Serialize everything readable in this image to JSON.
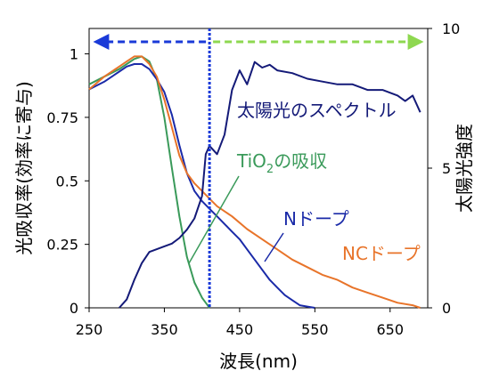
{
  "chart_data": {
    "type": "line",
    "xlabel": "波長(nm)",
    "ylabel_left": "光吸収率(効率に寄与)",
    "ylabel_right": "太陽光強度",
    "xlim": [
      250,
      700
    ],
    "ylim_left": [
      0,
      1.1
    ],
    "ylim_right": [
      0,
      10
    ],
    "x_ticks": [
      "250",
      "350",
      "450",
      "550",
      "650"
    ],
    "y_ticks_left": [
      "0",
      "0.25",
      "0.5",
      "0.75",
      "1"
    ],
    "y_ticks_right": [
      "0",
      "5",
      "10"
    ],
    "grid": false,
    "colors": {
      "tio2": "#3a9a5a",
      "n_dope": "#1a2aa8",
      "nc_dope": "#e8742a",
      "solar": "#141a78",
      "vline": "#1a3ad8",
      "arrow_left": "#1a3ad8",
      "arrow_right": "#8ed850"
    },
    "series": [
      {
        "name": "TiO2の吸収",
        "axis": "left",
        "x": [
          250,
          270,
          290,
          300,
          310,
          320,
          330,
          340,
          350,
          360,
          370,
          380,
          390,
          400,
          405,
          410
        ],
        "y": [
          0.88,
          0.91,
          0.94,
          0.96,
          0.98,
          0.99,
          0.97,
          0.9,
          0.75,
          0.55,
          0.36,
          0.2,
          0.1,
          0.04,
          0.02,
          0.0
        ]
      },
      {
        "name": "Nドープ",
        "axis": "left",
        "x": [
          250,
          270,
          290,
          300,
          310,
          320,
          330,
          340,
          350,
          360,
          370,
          380,
          390,
          400,
          410,
          420,
          430,
          440,
          450,
          460,
          470,
          480,
          490,
          500,
          510,
          520,
          530,
          540,
          550
        ],
        "y": [
          0.86,
          0.89,
          0.93,
          0.95,
          0.96,
          0.96,
          0.94,
          0.9,
          0.85,
          0.76,
          0.64,
          0.53,
          0.46,
          0.42,
          0.39,
          0.36,
          0.33,
          0.3,
          0.27,
          0.23,
          0.19,
          0.15,
          0.11,
          0.08,
          0.05,
          0.03,
          0.01,
          0.005,
          0.0
        ]
      },
      {
        "name": "NCドープ",
        "axis": "left",
        "x": [
          250,
          270,
          290,
          300,
          310,
          320,
          330,
          340,
          350,
          360,
          370,
          380,
          390,
          400,
          410,
          420,
          440,
          460,
          480,
          500,
          520,
          540,
          560,
          580,
          600,
          620,
          640,
          660,
          680,
          690
        ],
        "y": [
          0.86,
          0.91,
          0.95,
          0.97,
          0.99,
          0.99,
          0.96,
          0.91,
          0.82,
          0.71,
          0.6,
          0.53,
          0.49,
          0.46,
          0.43,
          0.4,
          0.36,
          0.31,
          0.27,
          0.23,
          0.19,
          0.16,
          0.13,
          0.11,
          0.08,
          0.06,
          0.04,
          0.02,
          0.01,
          0.0
        ]
      },
      {
        "name": "太陽光のスペクトル",
        "axis": "right",
        "x": [
          290,
          300,
          310,
          320,
          330,
          340,
          350,
          360,
          370,
          380,
          390,
          400,
          405,
          410,
          420,
          430,
          440,
          450,
          460,
          470,
          480,
          490,
          500,
          520,
          540,
          560,
          580,
          600,
          620,
          640,
          660,
          670,
          680,
          690
        ],
        "y": [
          0.0,
          0.3,
          1.0,
          1.6,
          2.0,
          2.1,
          2.2,
          2.3,
          2.5,
          2.8,
          3.2,
          4.0,
          5.5,
          5.8,
          5.5,
          6.2,
          7.8,
          8.5,
          8.0,
          8.8,
          8.6,
          8.7,
          8.5,
          8.4,
          8.2,
          8.1,
          8.0,
          8.0,
          7.8,
          7.8,
          7.6,
          7.4,
          7.6,
          7.0
        ]
      }
    ],
    "vertical_line_x": 410,
    "annotations": {
      "solar": "太陽光のスペクトル",
      "tio2_prefix": "TiO",
      "tio2_sub": "2",
      "tio2_suffix": "の吸収",
      "n_dope": "Nドープ",
      "nc_dope": "NCドープ"
    }
  }
}
